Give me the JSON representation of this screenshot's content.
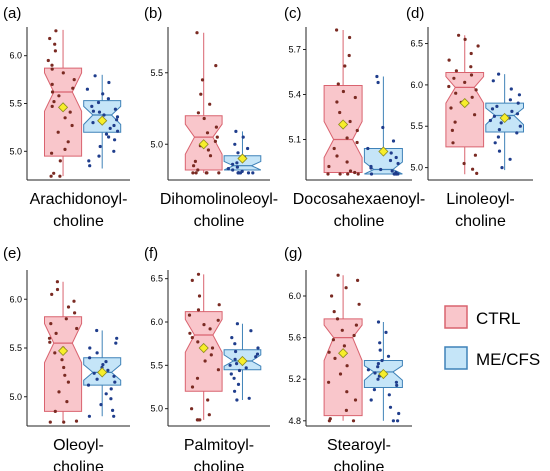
{
  "colors": {
    "ctrl_fill": "#f9c6cb",
    "ctrl_line": "#d9636f",
    "ctrl_point": "#7a2a22",
    "mecfs_fill": "#c5e5f8",
    "mecfs_line": "#3f82b8",
    "mecfs_point": "#1f3d8c",
    "mean_marker": "#f7ee2a",
    "mean_marker_edge": "#8c8a1e",
    "axis": "#222222",
    "text": "#000000"
  },
  "legend": {
    "items": [
      {
        "label": "CTRL",
        "fill": "#f9c6cb",
        "edge": "#d9636f"
      },
      {
        "label": "ME/CFS",
        "fill": "#c5e5f8",
        "edge": "#3f82b8"
      }
    ]
  },
  "chart_data": [
    {
      "type": "box",
      "panel": "(a)",
      "xlabel": [
        "Arachidonoyl-",
        "choline"
      ],
      "ylim": [
        4.7,
        6.3
      ],
      "yticks": [
        5.0,
        5.5,
        6.0
      ],
      "ytick_labels": [
        "5.0",
        "5.5",
        "6.0"
      ],
      "series": [
        {
          "name": "CTRL",
          "q1": 4.95,
          "median": 5.62,
          "q3": 5.87,
          "notch_low": 5.42,
          "notch_high": 5.82,
          "whisker_low": 4.74,
          "whisker_high": 6.27,
          "mean": 5.46,
          "points": [
            6.26,
            6.18,
            6.12,
            6.05,
            5.95,
            5.9,
            5.86,
            5.82,
            5.75,
            5.7,
            5.66,
            5.62,
            5.58,
            5.52,
            5.47,
            5.41,
            5.35,
            5.27,
            5.2,
            5.1,
            5.02,
            4.98,
            4.9,
            4.77,
            4.74,
            4.74
          ]
        },
        {
          "name": "ME/CFS",
          "q1": 5.2,
          "median": 5.38,
          "q3": 5.53,
          "notch_low": 5.28,
          "notch_high": 5.47,
          "whisker_low": 4.82,
          "whisker_high": 5.8,
          "mean": 5.32,
          "points": [
            5.79,
            5.72,
            5.65,
            5.6,
            5.55,
            5.51,
            5.47,
            5.44,
            5.41,
            5.38,
            5.36,
            5.33,
            5.3,
            5.27,
            5.24,
            5.21,
            5.18,
            5.12,
            5.05,
            5.0,
            4.95,
            4.9,
            4.85,
            5.15,
            5.42
          ]
        }
      ]
    },
    {
      "type": "box",
      "panel": "(b)",
      "xlabel": [
        "Dihomolinoleoyl-",
        "choline"
      ],
      "ylim": [
        4.75,
        5.82
      ],
      "yticks": [
        5.0,
        5.5
      ],
      "ytick_labels": [
        "5.0",
        "5.5"
      ],
      "series": [
        {
          "name": "CTRL",
          "q1": 4.82,
          "median": 5.05,
          "q3": 5.2,
          "notch_low": 4.93,
          "notch_high": 5.14,
          "whisker_low": 4.8,
          "whisker_high": 5.78,
          "mean": 5.0,
          "points": [
            5.78,
            5.55,
            5.45,
            5.35,
            5.28,
            5.22,
            5.18,
            5.12,
            5.08,
            5.05,
            5.02,
            4.99,
            4.96,
            4.92,
            4.88,
            4.85,
            4.82,
            4.8,
            4.8,
            4.8,
            4.8,
            4.8
          ]
        },
        {
          "name": "ME/CFS",
          "q1": 4.82,
          "median": 4.85,
          "q3": 4.92,
          "notch_low": 4.82,
          "notch_high": 4.88,
          "whisker_low": 4.8,
          "whisker_high": 5.09,
          "mean": 4.9,
          "points": [
            5.09,
            5.05,
            5.0,
            4.97,
            4.94,
            4.91,
            4.89,
            4.87,
            4.86,
            4.84,
            4.83,
            4.82,
            4.81,
            4.8,
            4.8,
            4.8,
            4.8,
            4.8,
            4.8,
            4.8
          ]
        }
      ]
    },
    {
      "type": "box",
      "panel": "(c)",
      "xlabel": [
        "Docosahexaenoyl-",
        "choline"
      ],
      "ylim": [
        4.83,
        5.85
      ],
      "yticks": [
        5.1,
        5.4,
        5.7
      ],
      "ytick_labels": [
        "5.1",
        "5.4",
        "5.7"
      ],
      "series": [
        {
          "name": "CTRL",
          "q1": 4.88,
          "median": 5.1,
          "q3": 5.46,
          "notch_low": 4.98,
          "notch_high": 5.22,
          "whisker_low": 4.87,
          "whisker_high": 5.83,
          "mean": 5.2,
          "points": [
            5.83,
            5.78,
            5.66,
            5.59,
            5.47,
            5.42,
            5.38,
            5.35,
            5.28,
            5.22,
            5.16,
            5.11,
            5.08,
            5.04,
            4.99,
            4.95,
            4.92,
            4.89,
            4.88,
            4.87,
            4.87,
            4.87,
            4.87
          ]
        },
        {
          "name": "ME/CFS",
          "q1": 4.87,
          "median": 4.9,
          "q3": 5.04,
          "notch_low": 4.87,
          "notch_high": 4.95,
          "whisker_low": 4.87,
          "whisker_high": 5.52,
          "mean": 5.02,
          "points": [
            5.52,
            5.48,
            5.18,
            5.09,
            5.04,
            5.01,
            4.98,
            4.96,
            4.94,
            4.92,
            4.91,
            4.9,
            4.89,
            4.88,
            4.87,
            4.87,
            4.87,
            4.87,
            4.87,
            4.87
          ]
        }
      ]
    },
    {
      "type": "box",
      "panel": "(d)",
      "xlabel": [
        "Linoleoyl-",
        "choline"
      ],
      "ylim": [
        4.85,
        6.7
      ],
      "yticks": [
        5.0,
        5.5,
        6.0,
        6.5
      ],
      "ytick_labels": [
        "5.0",
        "5.5",
        "6.0",
        "6.5"
      ],
      "series": [
        {
          "name": "CTRL",
          "q1": 5.25,
          "median": 5.97,
          "q3": 6.15,
          "notch_low": 5.78,
          "notch_high": 6.1,
          "whisker_low": 4.92,
          "whisker_high": 6.6,
          "mean": 5.78,
          "points": [
            6.6,
            6.55,
            6.47,
            6.38,
            6.3,
            6.22,
            6.17,
            6.12,
            6.08,
            6.03,
            5.98,
            5.94,
            5.9,
            5.85,
            5.79,
            5.72,
            5.64,
            5.55,
            5.45,
            5.3,
            5.15,
            5.05,
            4.98,
            4.93
          ]
        },
        {
          "name": "ME/CFS",
          "q1": 5.43,
          "median": 5.63,
          "q3": 5.78,
          "notch_low": 5.52,
          "notch_high": 5.72,
          "whisker_low": 4.97,
          "whisker_high": 6.13,
          "mean": 5.6,
          "points": [
            6.13,
            6.05,
            5.95,
            5.88,
            5.82,
            5.78,
            5.74,
            5.71,
            5.68,
            5.65,
            5.62,
            5.6,
            5.57,
            5.54,
            5.5,
            5.46,
            5.42,
            5.37,
            5.3,
            5.2,
            5.1,
            5.0
          ]
        }
      ]
    },
    {
      "type": "box",
      "panel": "(e)",
      "xlabel": [
        "Oleoyl-",
        "choline"
      ],
      "ylim": [
        4.7,
        6.3
      ],
      "yticks": [
        5.0,
        5.5,
        6.0
      ],
      "ytick_labels": [
        "5.0",
        "5.5",
        "6.0"
      ],
      "series": [
        {
          "name": "CTRL",
          "q1": 4.85,
          "median": 5.55,
          "q3": 5.82,
          "notch_low": 5.35,
          "notch_high": 5.75,
          "whisker_low": 4.74,
          "whisker_high": 6.18,
          "mean": 5.47,
          "points": [
            6.18,
            6.1,
            6.05,
            5.98,
            5.92,
            5.86,
            5.8,
            5.75,
            5.7,
            5.65,
            5.6,
            5.56,
            5.5,
            5.45,
            5.38,
            5.3,
            5.22,
            5.15,
            5.05,
            4.95,
            4.85,
            4.75,
            4.74,
            4.74
          ]
        },
        {
          "name": "ME/CFS",
          "q1": 5.12,
          "median": 5.25,
          "q3": 5.4,
          "notch_low": 5.17,
          "notch_high": 5.33,
          "whisker_low": 4.8,
          "whisker_high": 5.68,
          "mean": 5.25,
          "points": [
            5.68,
            5.6,
            5.55,
            5.5,
            5.45,
            5.4,
            5.36,
            5.33,
            5.3,
            5.27,
            5.24,
            5.21,
            5.18,
            5.15,
            5.12,
            5.08,
            5.03,
            4.98,
            4.92,
            4.86,
            4.8,
            4.8
          ]
        }
      ]
    },
    {
      "type": "box",
      "panel": "(f)",
      "xlabel": [
        "Palmitoyl-",
        "choline"
      ],
      "ylim": [
        4.8,
        6.6
      ],
      "yticks": [
        5.0,
        5.5,
        6.0,
        6.5
      ],
      "ytick_labels": [
        "5.0",
        "5.5",
        "6.0",
        "6.5"
      ],
      "series": [
        {
          "name": "CTRL",
          "q1": 5.2,
          "median": 5.85,
          "q3": 6.12,
          "notch_low": 5.65,
          "notch_high": 6.03,
          "whisker_low": 4.87,
          "whisker_high": 6.55,
          "mean": 5.7,
          "points": [
            6.55,
            6.48,
            6.3,
            6.2,
            6.14,
            6.08,
            6.02,
            5.97,
            5.92,
            5.87,
            5.82,
            5.77,
            5.7,
            5.62,
            5.55,
            5.45,
            5.35,
            5.25,
            5.1,
            5.0,
            4.93,
            4.87,
            4.87,
            4.87
          ]
        },
        {
          "name": "ME/CFS",
          "q1": 5.45,
          "median": 5.55,
          "q3": 5.68,
          "notch_low": 5.49,
          "notch_high": 5.62,
          "whisker_low": 5.1,
          "whisker_high": 5.98,
          "mean": 5.55,
          "points": [
            5.98,
            5.9,
            5.82,
            5.75,
            5.7,
            5.66,
            5.63,
            5.6,
            5.57,
            5.55,
            5.52,
            5.5,
            5.47,
            5.44,
            5.4,
            5.35,
            5.28,
            5.2,
            5.12,
            5.1
          ]
        }
      ]
    },
    {
      "type": "box",
      "panel": "(g)",
      "xlabel": [
        "Stearoyl-",
        "choline"
      ],
      "ylim": [
        4.75,
        6.25
      ],
      "yticks": [
        4.8,
        5.2,
        5.6,
        6.0
      ],
      "ytick_labels": [
        "4.8",
        "5.2",
        "5.6",
        "6.0"
      ],
      "series": [
        {
          "name": "CTRL",
          "q1": 4.85,
          "median": 5.6,
          "q3": 5.78,
          "notch_low": 5.38,
          "notch_high": 5.72,
          "whisker_low": 4.8,
          "whisker_high": 6.2,
          "mean": 5.45,
          "points": [
            6.2,
            6.15,
            6.08,
            6.0,
            5.92,
            5.85,
            5.78,
            5.72,
            5.67,
            5.62,
            5.58,
            5.52,
            5.46,
            5.4,
            5.33,
            5.25,
            5.17,
            5.08,
            5.0,
            4.9,
            4.82,
            4.8,
            4.8
          ]
        },
        {
          "name": "ME/CFS",
          "q1": 5.12,
          "median": 5.27,
          "q3": 5.38,
          "notch_low": 5.19,
          "notch_high": 5.33,
          "whisker_low": 4.8,
          "whisker_high": 5.75,
          "mean": 5.25,
          "points": [
            5.75,
            5.65,
            5.55,
            5.48,
            5.42,
            5.38,
            5.35,
            5.32,
            5.29,
            5.26,
            5.23,
            5.2,
            5.17,
            5.14,
            5.1,
            5.05,
            5.0,
            4.93,
            4.87,
            4.8,
            4.8
          ]
        }
      ]
    }
  ]
}
